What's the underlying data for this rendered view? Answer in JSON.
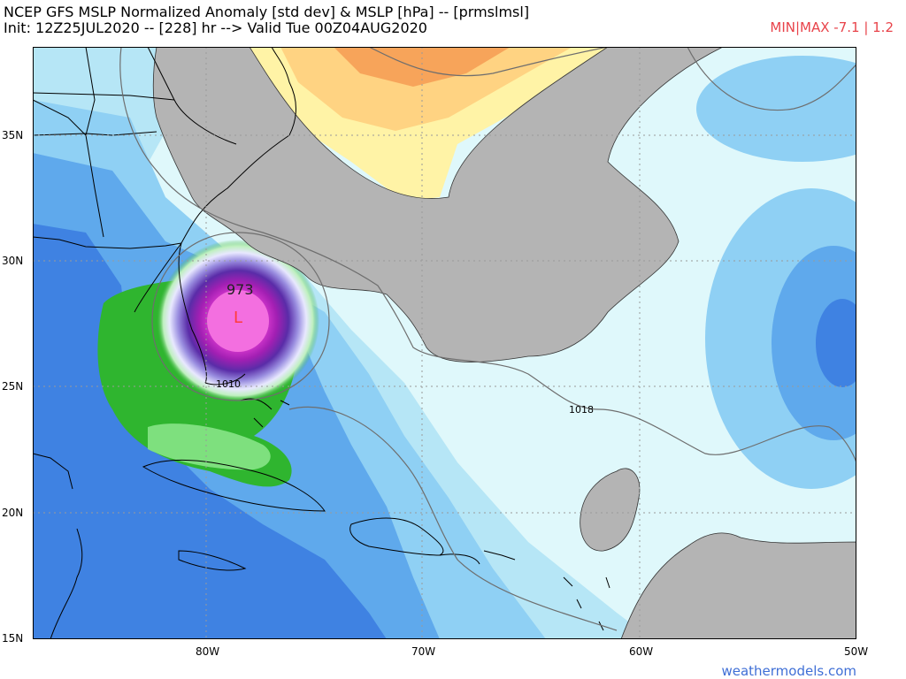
{
  "header": {
    "title_line1": "NCEP GFS MSLP Normalized Anomaly [std dev] & MSLP [hPa] -- [prmslmsl]",
    "title_line2": "Init: 12Z25JUL2020 -- [228] hr --> Valid Tue 00Z04AUG2020",
    "minmax": "MIN|MAX -7.1 | 1.2"
  },
  "map": {
    "lat_labels": [
      "35N",
      "30N",
      "25N",
      "20N",
      "15N"
    ],
    "lon_labels": [
      "80W",
      "70W",
      "60W",
      "50W"
    ],
    "isobar_labels": [
      "1010",
      "1018"
    ],
    "center_pressure": "973",
    "low_marker": "L"
  },
  "footer": {
    "credit": "weathermodels.com"
  },
  "colors": {
    "gray_mask": "#b4b4b4",
    "ocean_pale": "#dff8fb",
    "blue_light": "#8fd0f4",
    "blue_mid": "#4f9ae8",
    "blue_deep": "#2f71de",
    "green": "#2fb52f",
    "green_light": "#7ee07e",
    "warm_yellow": "#fff3a6",
    "warm_orange": "#f7a45a",
    "low_magenta": "#e63fd6",
    "low_marker": "#ff3b3b"
  }
}
